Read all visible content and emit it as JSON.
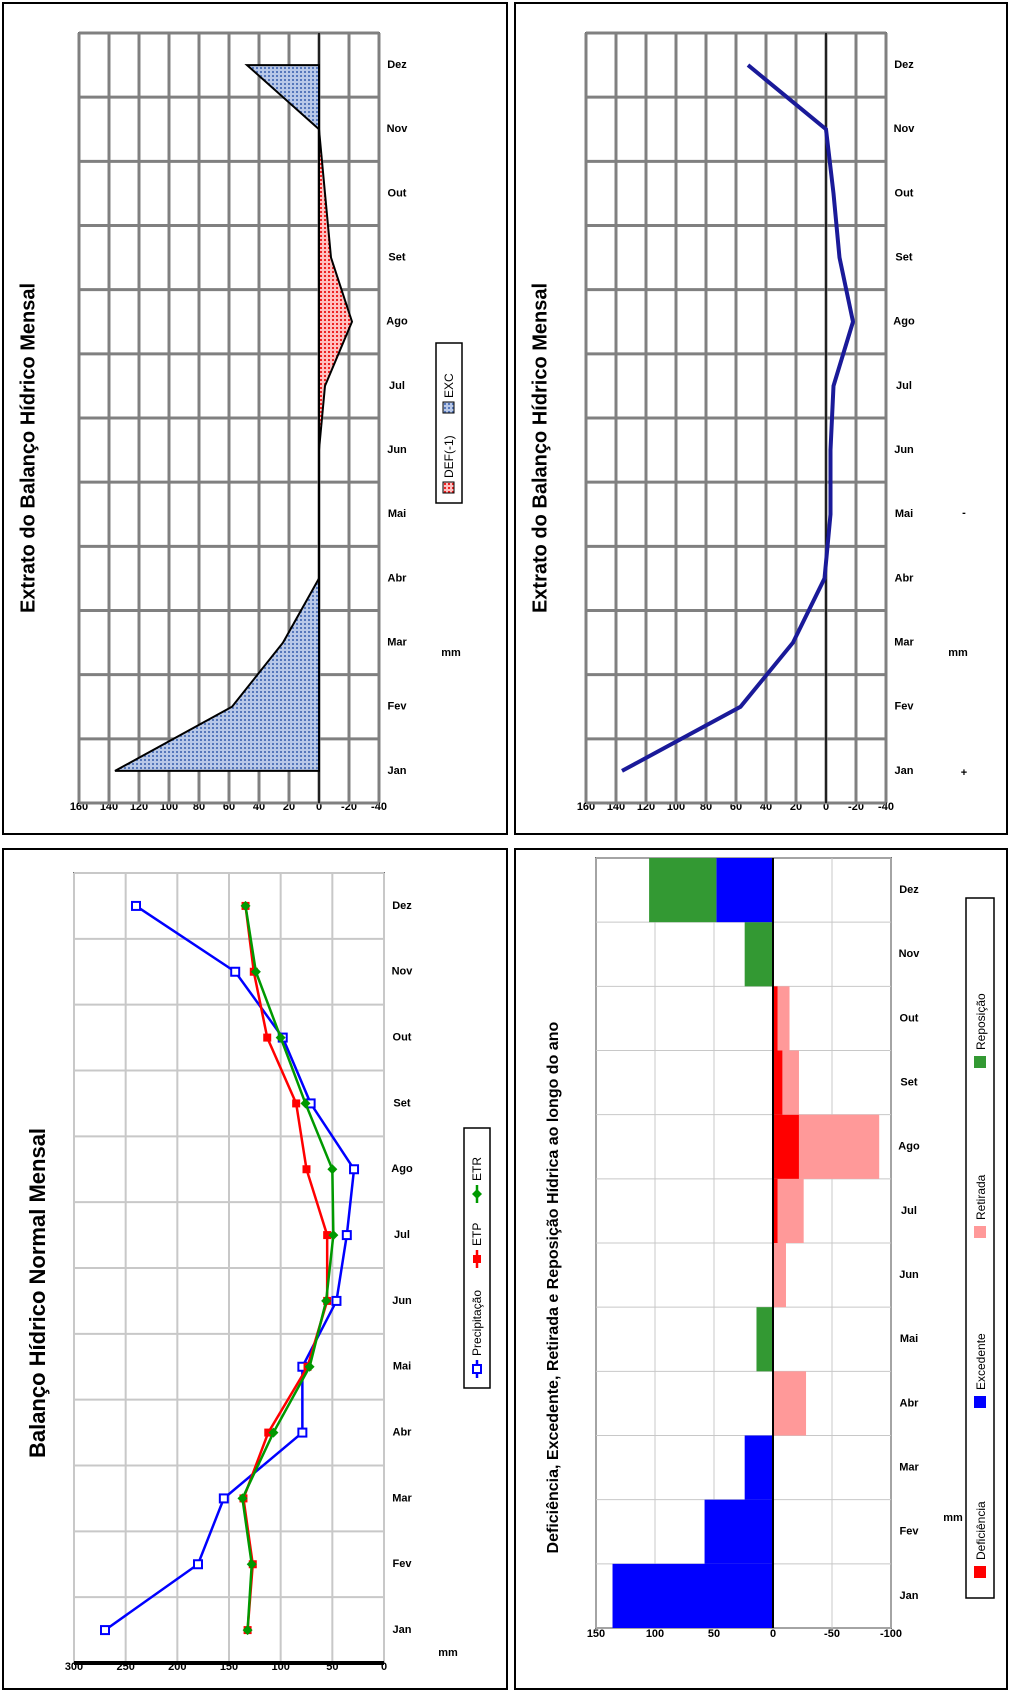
{
  "chart_data": [
    {
      "type": "line",
      "title": "Extrato do Balanço Hídrico Mensal",
      "ylabel": "mm",
      "categories": [
        "Jan",
        "Fev",
        "Mar",
        "Abr",
        "Mai",
        "Jun",
        "Jul",
        "Ago",
        "Set",
        "Out",
        "Nov",
        "Dez"
      ],
      "ylim": [
        -40,
        160
      ],
      "yticks": [
        "-40",
        "-20",
        "0",
        "20",
        "40",
        "60",
        "80",
        "100",
        "120",
        "140",
        "160"
      ],
      "side_labels": [
        "+ ",
        "- "
      ],
      "series": [
        {
          "name": "",
          "color": "#1a1a99",
          "values": [
            136,
            57,
            22,
            1,
            -3,
            -3,
            -5,
            -18,
            -9,
            -5,
            0,
            52
          ]
        }
      ]
    },
    {
      "type": "bar",
      "title": "Deficiência, Excedente, Retirada e Reposição Hídrica ao longo do ano",
      "ylabel": "mm",
      "categories": [
        "Jan",
        "Fev",
        "Mar",
        "Abr",
        "Mai",
        "Jun",
        "Jul",
        "Ago",
        "Set",
        "Out",
        "Nov",
        "Dez"
      ],
      "ylim": [
        -100,
        150
      ],
      "yticks": [
        "-100",
        "-50",
        "0",
        "50",
        "100",
        "150"
      ],
      "legend_position": "bottom",
      "series": [
        {
          "name": "Deficiência",
          "color": "#ff0000",
          "values": [
            0,
            0,
            0,
            0,
            0,
            0,
            -4,
            -22,
            -8,
            -4,
            0,
            0
          ]
        },
        {
          "name": "Excedente",
          "color": "#0000ff",
          "values": [
            136,
            58,
            24,
            0,
            0,
            0,
            0,
            0,
            0,
            0,
            0,
            48
          ]
        },
        {
          "name": "Retirada",
          "color": "#ff9999",
          "values": [
            0,
            0,
            0,
            -28,
            0,
            -11,
            -22,
            -68,
            -14,
            -10,
            0,
            0
          ]
        },
        {
          "name": "Reposição",
          "color": "#339933",
          "values": [
            0,
            0,
            0,
            0,
            14,
            0,
            0,
            0,
            0,
            0,
            24,
            57
          ]
        }
      ]
    },
    {
      "type": "area",
      "title": "Extrato do Balanço Hídrico Mensal",
      "ylabel": "mm",
      "categories": [
        "Jan",
        "Fev",
        "Mar",
        "Abr",
        "Mai",
        "Jun",
        "Jul",
        "Ago",
        "Set",
        "Out",
        "Nov",
        "Dez"
      ],
      "ylim": [
        -40,
        160
      ],
      "yticks": [
        "-40",
        "-20",
        "0",
        "20",
        "40",
        "60",
        "80",
        "100",
        "120",
        "140",
        "160"
      ],
      "legend_position": "bottom",
      "series": [
        {
          "name": "DEF(-1)",
          "color": "#ff3333",
          "values": [
            0,
            0,
            0,
            0,
            0,
            0,
            -4,
            -22,
            -8,
            -4,
            0,
            0
          ]
        },
        {
          "name": "EXC",
          "color": "#6688cc",
          "values": [
            136,
            58,
            24,
            0,
            0,
            0,
            0,
            0,
            0,
            0,
            0,
            48
          ]
        }
      ]
    },
    {
      "type": "line",
      "title": "Balanço Hídrico Normal Mensal",
      "ylabel": "mm",
      "categories": [
        "Jan",
        "Fev",
        "Mar",
        "Abr",
        "Mai",
        "Jun",
        "Jul",
        "Ago",
        "Set",
        "Out",
        "Nov",
        "Dez"
      ],
      "ylim": [
        0,
        300
      ],
      "yticks": [
        "0",
        "50",
        "100",
        "150",
        "200",
        "250",
        "300"
      ],
      "legend_position": "bottom",
      "series": [
        {
          "name": "Precipitação",
          "color": "#0000ff",
          "marker": "square-open",
          "values": [
            270,
            180,
            155,
            79,
            79,
            46,
            36,
            29,
            71,
            98,
            144,
            240
          ]
        },
        {
          "name": "ETP",
          "color": "#ff0000",
          "marker": "square",
          "values": [
            132,
            127,
            136,
            112,
            74,
            55,
            55,
            75,
            85,
            113,
            126,
            134
          ]
        },
        {
          "name": "ETR",
          "color": "#009900",
          "marker": "diamond",
          "values": [
            132,
            128,
            137,
            107,
            72,
            56,
            49,
            50,
            76,
            100,
            124,
            134
          ]
        }
      ]
    }
  ]
}
